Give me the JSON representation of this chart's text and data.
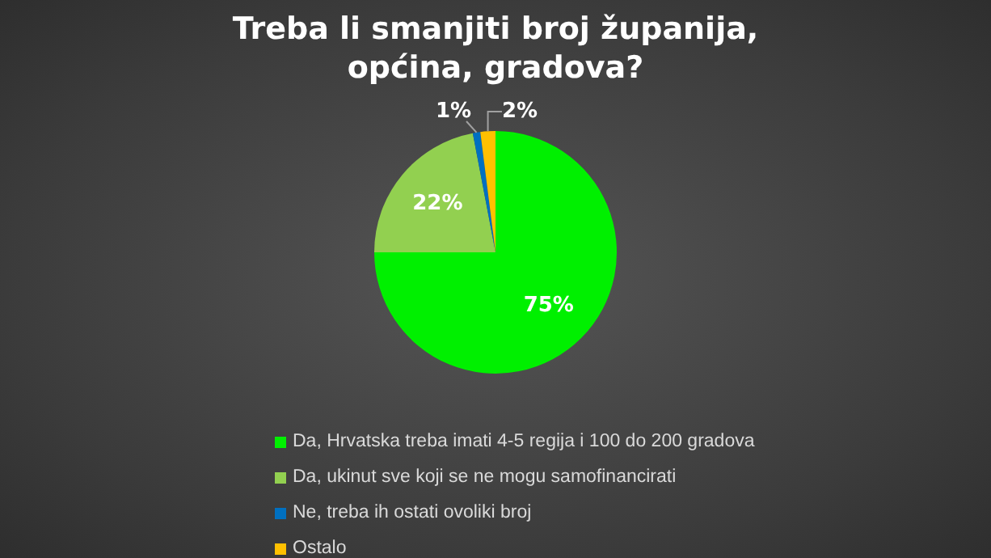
{
  "chart_data": {
    "type": "pie",
    "title": "Treba li smanjiti  broj županija, općina, gradova?",
    "categories": [
      "Da, Hrvatska treba imati 4-5 regija i 100 do 200 gradova",
      "Da, ukinut sve koji se ne mogu samofinancirati",
      "Ne, treba ih ostati ovoliki broj",
      "Ostalo"
    ],
    "values": [
      75,
      22,
      1,
      2
    ],
    "colors": [
      "#00f000",
      "#92d050",
      "#0070c0",
      "#ffc000"
    ],
    "value_labels": [
      "75%",
      "22%",
      "1%",
      "2%"
    ],
    "legend": "bottom"
  }
}
